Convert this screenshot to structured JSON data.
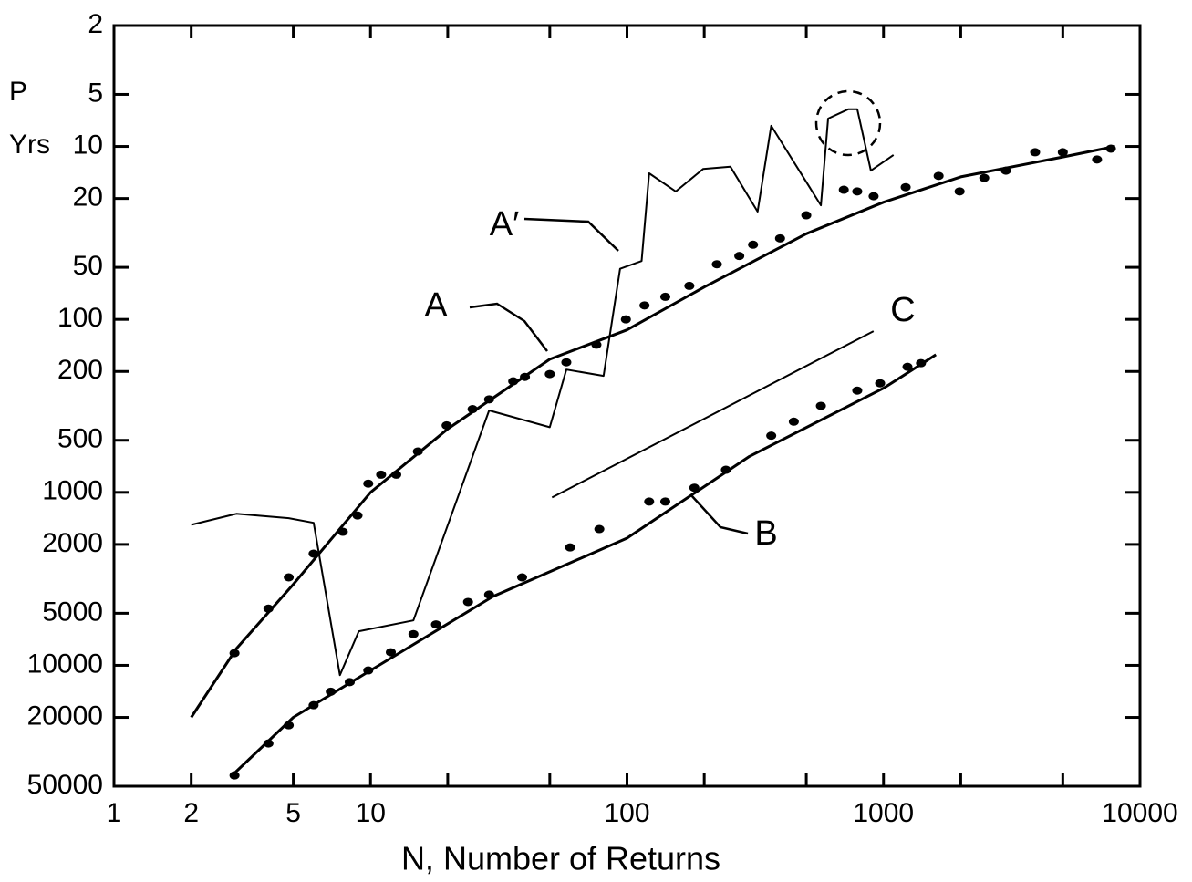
{
  "chart_data": {
    "type": "line",
    "xlabel": "N, Number of Returns",
    "ylabel_lines": [
      "P",
      "Yrs"
    ],
    "xscale": "log",
    "yscale": "log",
    "y_inverted": true,
    "xlim": [
      1,
      10000
    ],
    "xticks": [
      1,
      2,
      5,
      10,
      100,
      1000,
      10000
    ],
    "xminor_ticks": [
      20,
      50,
      200,
      500,
      2000,
      5000
    ],
    "ylim": [
      2,
      50000
    ],
    "yticks": [
      2,
      5,
      10,
      20,
      50,
      100,
      200,
      500,
      1000,
      2000,
      5000,
      10000,
      20000,
      50000
    ],
    "color": "#000000",
    "series": [
      {
        "name": "A",
        "x": [
          2,
          3,
          5,
          10,
          20,
          50,
          100,
          200,
          500,
          1000,
          2000,
          5000,
          8000
        ],
        "values": [
          20000,
          8000,
          3400,
          1000,
          430,
          170,
          115,
          65,
          32,
          21,
          15,
          11.5,
          10
        ],
        "points_x": [
          2.95,
          4,
          4.8,
          6,
          7.8,
          8.9,
          9.8,
          11,
          12.6,
          15.3,
          19.8,
          25,
          29,
          36,
          40,
          50,
          58,
          76,
          99,
          117,
          141,
          175,
          224,
          274,
          310,
          395,
          500,
          700,
          790,
          915,
          1220,
          1640,
          1980,
          2470,
          3000,
          3900,
          5000,
          6800,
          7700
        ],
        "points_y": [
          8500,
          4700,
          3100,
          2260,
          1690,
          1360,
          890,
          790,
          790,
          580,
          410,
          330,
          290,
          228,
          215,
          207,
          177,
          140,
          100,
          83,
          74,
          64,
          48,
          43,
          37,
          34,
          25,
          17.8,
          18.2,
          19.4,
          17.2,
          14.8,
          18.2,
          15.2,
          13.8,
          10.8,
          10.8,
          11.9,
          10.3
        ]
      },
      {
        "name": "A′",
        "x": [
          2,
          3,
          4.8,
          6,
          7.6,
          9,
          14.7,
          29,
          50,
          58,
          81,
          94,
          114,
          122,
          155,
          198,
          253,
          323,
          365,
          570,
          608,
          728,
          790,
          893,
          1094
        ],
        "values": [
          1540,
          1330,
          1410,
          1500,
          11400,
          6350,
          5500,
          336,
          420,
          195,
          212,
          51,
          46,
          14.3,
          18.2,
          13.5,
          13.1,
          23.8,
          7.6,
          21.9,
          6.9,
          6.1,
          6.1,
          13.8,
          11.2
        ]
      },
      {
        "name": "B",
        "x": [
          2.9,
          5,
          10,
          30,
          100,
          300,
          1000,
          1600
        ],
        "values": [
          43000,
          20000,
          10700,
          4000,
          1840,
          620,
          250,
          160
        ],
        "points_x": [
          2.95,
          4,
          4.8,
          6,
          7,
          8.3,
          9.8,
          12,
          14.7,
          18,
          24,
          29,
          39,
          60,
          78,
          122,
          141,
          183,
          243,
          365,
          447,
          570,
          790,
          970,
          1240,
          1400
        ],
        "points_y": [
          43300,
          28300,
          22200,
          17000,
          14200,
          12500,
          10700,
          8400,
          6600,
          5800,
          4300,
          3900,
          3100,
          2080,
          1630,
          1130,
          1130,
          940,
          740,
          470,
          390,
          316,
          258,
          234,
          188,
          179
        ]
      },
      {
        "name": "C",
        "x": [
          51,
          914
        ],
        "values": [
          1070,
          117
        ]
      }
    ]
  }
}
